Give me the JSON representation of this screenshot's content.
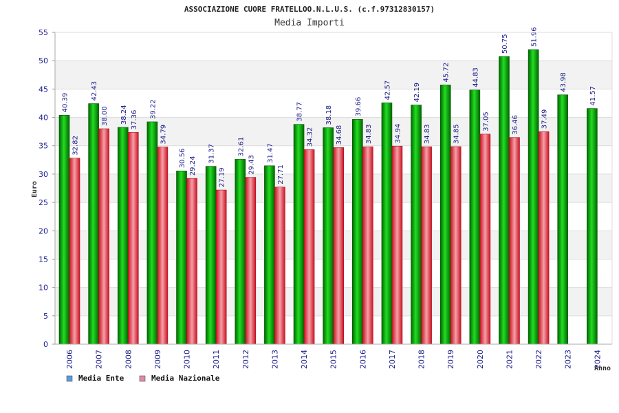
{
  "chart_data": {
    "type": "bar",
    "title": "ASSOCIAZIONE CUORE FRATELLOO.N.L.U.S. (c.f.97312830157)",
    "subtitle": "Media Importi",
    "xlabel": "Anno",
    "ylabel": "Euro",
    "ylim": [
      0,
      55
    ],
    "yticks": [
      "0",
      "5",
      "10",
      "15",
      "20",
      "25",
      "30",
      "35",
      "40",
      "45",
      "50",
      "55"
    ],
    "categories": [
      "2006",
      "2007",
      "2008",
      "2009",
      "2010",
      "2011",
      "2012",
      "2013",
      "2014",
      "2015",
      "2016",
      "2017",
      "2018",
      "2019",
      "2020",
      "2021",
      "2022",
      "2023",
      "2024"
    ],
    "series": [
      {
        "name": "Media Ente",
        "color": "#00a000",
        "legend_color": "#5b9be0",
        "values": [
          40.39,
          42.43,
          38.24,
          39.22,
          30.56,
          31.37,
          32.61,
          31.47,
          38.77,
          38.18,
          39.66,
          42.57,
          42.19,
          45.72,
          44.83,
          50.75,
          51.96,
          43.98,
          41.57
        ],
        "labels": [
          "40.39",
          "42.43",
          "38.24",
          "39.22",
          "30.56",
          "31.37",
          "32.61",
          "31.47",
          "38.77",
          "38.18",
          "39.66",
          "42.57",
          "42.19",
          "45.72",
          "44.83",
          "50.75",
          "51.96",
          "43.98",
          "41.57"
        ]
      },
      {
        "name": "Media Nazionale",
        "color": "#e03040",
        "legend_color": "#e08aa8",
        "values": [
          32.82,
          38.0,
          37.36,
          34.79,
          29.24,
          27.19,
          29.43,
          27.71,
          34.32,
          34.68,
          34.83,
          34.94,
          34.83,
          34.85,
          37.05,
          36.46,
          37.49,
          null,
          null
        ],
        "labels": [
          "32.82",
          "38.00",
          "37.36",
          "34.79",
          "29.24",
          "27.19",
          "29.43",
          "27.71",
          "34.32",
          "34.68",
          "34.83",
          "34.94",
          "34.83",
          "34.85",
          "37.05",
          "36.46",
          "37.49",
          null,
          null
        ]
      }
    ],
    "grid": true,
    "legend_position": "bottom-left"
  }
}
